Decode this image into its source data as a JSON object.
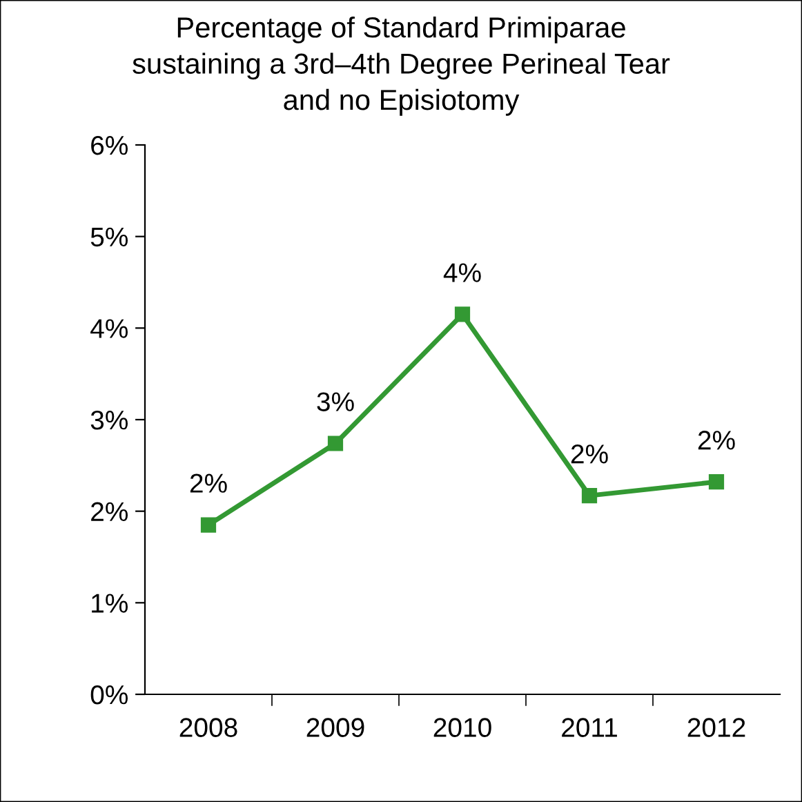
{
  "chart_data": {
    "type": "line",
    "title": "Percentage of Standard Primiparae\nsustaining a 3rd–4th Degree Perineal Tear\nand no Episiotomy",
    "categories": [
      "2008",
      "2009",
      "2010",
      "2011",
      "2012"
    ],
    "series": [
      {
        "color": "#339933",
        "values": [
          1.85,
          2.74,
          4.15,
          2.17,
          2.32
        ],
        "value_labels": [
          "2%",
          "3%",
          "4%",
          "2%",
          "2%"
        ]
      }
    ],
    "ylim": [
      0,
      6
    ],
    "yticks": [
      {
        "value": 0,
        "label": "0%"
      },
      {
        "value": 1,
        "label": "1%"
      },
      {
        "value": 2,
        "label": "2%"
      },
      {
        "value": 3,
        "label": "3%"
      },
      {
        "value": 4,
        "label": "4%"
      },
      {
        "value": 5,
        "label": "5%"
      },
      {
        "value": 6,
        "label": "6%"
      }
    ],
    "grid": false,
    "legend": false,
    "marker": "square",
    "line_style": "solid"
  }
}
